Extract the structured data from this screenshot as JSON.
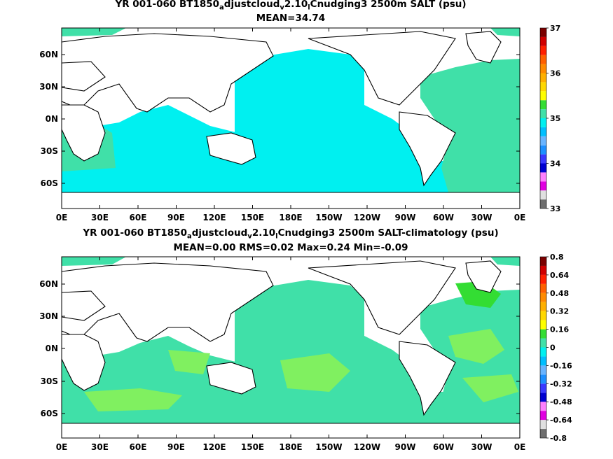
{
  "chart_data": [
    {
      "type": "heatmap",
      "title_parts": [
        "YR 001-060 BT1850",
        "a",
        "djustcloud",
        "v",
        "2.10",
        "l",
        "Cnudging3 2500m SALT (psu)"
      ],
      "subtitle": "MEAN=34.74",
      "xticks": [
        "0E",
        "30E",
        "60E",
        "90E",
        "120E",
        "150E",
        "180E",
        "150W",
        "120W",
        "90W",
        "60W",
        "30W",
        "0E"
      ],
      "yticks": [
        "60N",
        "30N",
        "0N",
        "30S",
        "60S"
      ],
      "colorbar": {
        "labels": [
          "33",
          "34",
          "35",
          "36",
          "37"
        ],
        "colors": [
          "#6e6e6e",
          "#e0e0e0",
          "#e100e1",
          "#ff80ff",
          "#0000d0",
          "#3a3aff",
          "#1e90ff",
          "#69b4ff",
          "#00bfff",
          "#00f0f0",
          "#40e0a8",
          "#33dd33",
          "#ffff00",
          "#ffd800",
          "#ffb000",
          "#ff8a00",
          "#ff6000",
          "#ff2000",
          "#d00000",
          "#7a0000"
        ]
      },
      "field_summary": {
        "pacific_indian_southern": 34.7,
        "atlantic": 34.9
      },
      "colors": {
        "pacific": "#00f0f0",
        "atlantic": "#40e0a8",
        "land": "#ffffff"
      }
    },
    {
      "type": "heatmap",
      "title_parts": [
        "YR 001-060 BT1850",
        "a",
        "djustcloud",
        "v",
        "2.10",
        "l",
        "Cnudging3 2500m SALT-climatology (psu)"
      ],
      "subtitle": "MEAN=0.00   RMS=0.02   Max=0.24   Min=-0.09",
      "xticks": [
        "0E",
        "30E",
        "60E",
        "90E",
        "120E",
        "150E",
        "180E",
        "150W",
        "120W",
        "90W",
        "60W",
        "30W",
        "0E"
      ],
      "yticks": [
        "60N",
        "30N",
        "0N",
        "30S",
        "60S"
      ],
      "colorbar": {
        "labels": [
          "0.8",
          "0.64",
          "0.48",
          "0.32",
          "0.16",
          "0",
          "-0.16",
          "-0.32",
          "-0.48",
          "-0.64",
          "-0.8"
        ],
        "colors": [
          "#6e6e6e",
          "#e0e0e0",
          "#e100e1",
          "#ff80ff",
          "#0000d0",
          "#3a3aff",
          "#1e90ff",
          "#69b4ff",
          "#00bfff",
          "#00f0f0",
          "#40e0a8",
          "#33dd33",
          "#ffff00",
          "#ffd800",
          "#ffb000",
          "#ff8a00",
          "#ff6000",
          "#ff2000",
          "#d00000",
          "#7a0000"
        ]
      },
      "field_summary": {
        "background": 0.0,
        "positive_patches": 0.16,
        "max_patch": 0.24
      },
      "colors": {
        "background": "#40e0a8",
        "positive": "#80f060",
        "max": "#33dd33",
        "land": "#ffffff"
      }
    }
  ]
}
